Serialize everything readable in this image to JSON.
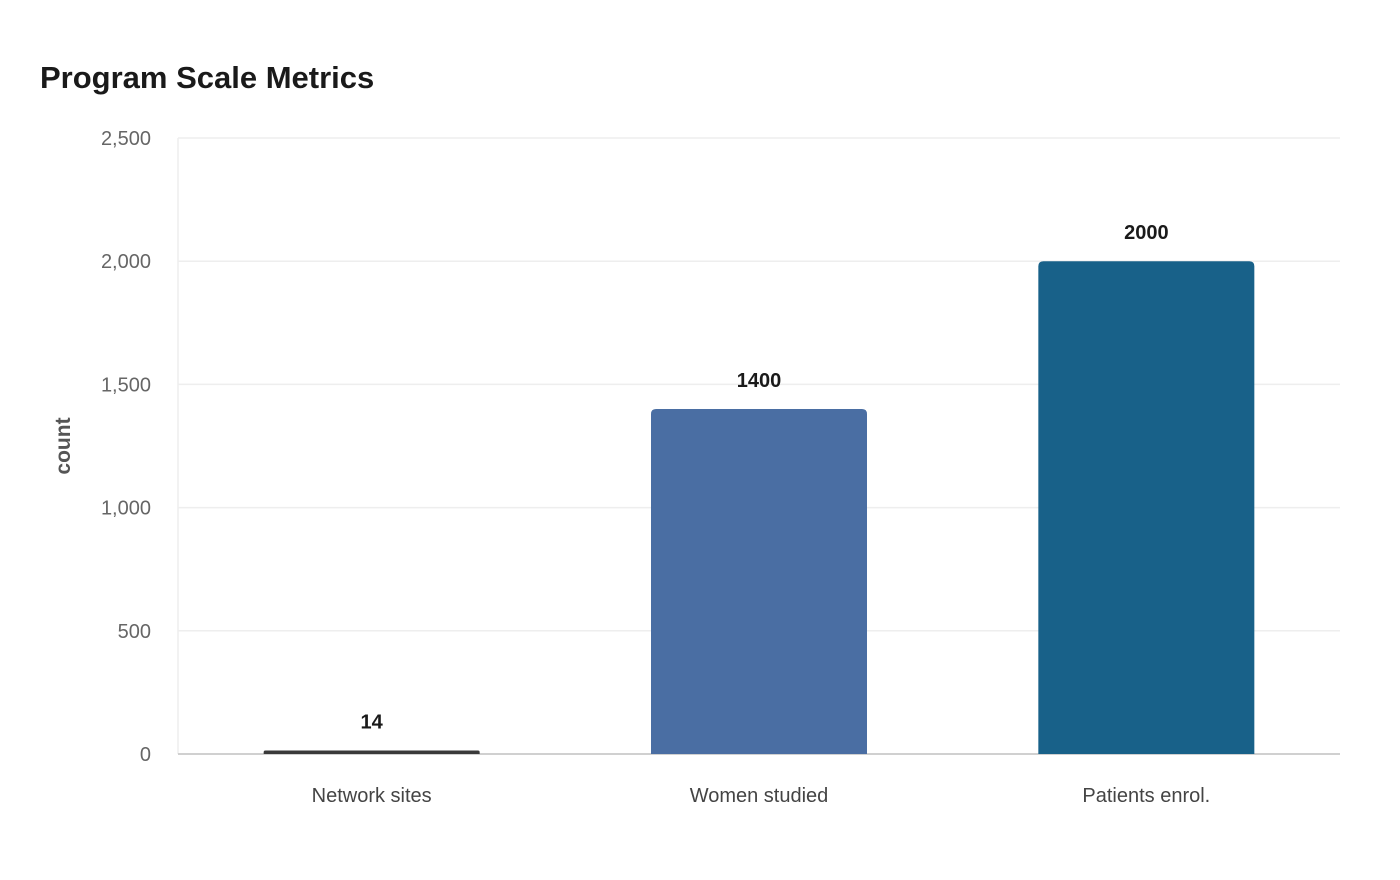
{
  "chart_data": {
    "type": "bar",
    "title": "Program Scale Metrics",
    "xlabel": "",
    "ylabel": "count",
    "categories": [
      "Network sites",
      "Women studied",
      "Patients enrol."
    ],
    "values": [
      14,
      1400,
      2000
    ],
    "data_labels": [
      "14",
      "1400",
      "2000"
    ],
    "ylim": [
      0,
      2500
    ],
    "yticks": [
      0,
      500,
      1000,
      1500,
      2000,
      2500
    ],
    "ytick_labels": [
      "0",
      "500",
      "1,000",
      "1,500",
      "2,000",
      "2,500"
    ],
    "grid": true,
    "colors": [
      "#3a3a3a",
      "#4a6ea3",
      "#186189"
    ],
    "gridline_color": "#eeeeee",
    "axis_color": "#d0d0d0"
  }
}
